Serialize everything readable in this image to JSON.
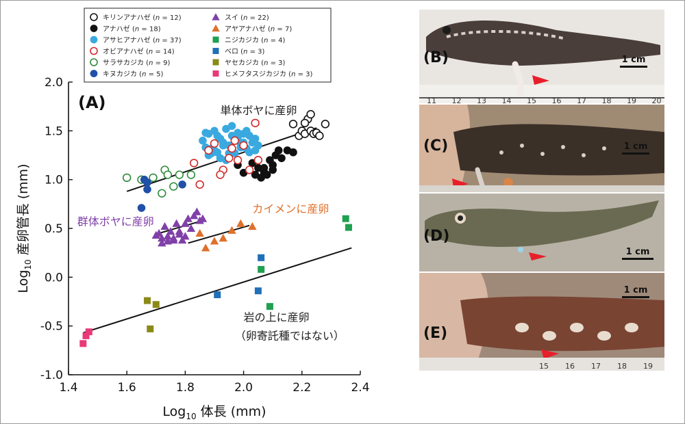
{
  "chart_data": {
    "type": "scatter",
    "panel_label": "(A)",
    "xlabel_main": "Log",
    "xlabel_sub": "10",
    "xlabel_rest": " 体長 (mm)",
    "ylabel_main": "Log",
    "ylabel_sub": "10",
    "ylabel_rest": " 産卵管長 (mm)",
    "xlim": [
      1.4,
      2.4
    ],
    "ylim": [
      -1.0,
      2.0
    ],
    "xticks": [
      "1.4",
      "1.6",
      "1.8",
      "2.0",
      "2.2",
      "2.4"
    ],
    "yticks": [
      "2.0",
      "1.5",
      "1.0",
      "0.5",
      "0.0",
      "-0.5",
      "-1.0"
    ],
    "annotations": [
      {
        "text": "単体ボヤに産卵",
        "x": 1.92,
        "y": 1.67,
        "color": "#222222"
      },
      {
        "text": "カイメンに産卵",
        "x": 2.03,
        "y": 0.66,
        "color": "#e0702a"
      },
      {
        "text": "群体ボヤに産卵",
        "x": 1.43,
        "y": 0.53,
        "color": "#8040a8"
      },
      {
        "text": "岩の上に産卵",
        "x": 2.0,
        "y": -0.45,
        "color": "#222222"
      },
      {
        "text": "（卵寄託種ではない）",
        "x": 1.97,
        "y": -0.64,
        "color": "#222222"
      }
    ],
    "trendlines": [
      {
        "x": [
          1.6,
          2.25
        ],
        "y": [
          0.88,
          1.53
        ]
      },
      {
        "x": [
          1.71,
          1.86
        ],
        "y": [
          0.45,
          0.58
        ]
      },
      {
        "x": [
          1.81,
          2.02
        ],
        "y": [
          0.35,
          0.53
        ]
      },
      {
        "x": [
          1.45,
          2.37
        ],
        "y": [
          -0.57,
          0.3
        ]
      }
    ],
    "series": [
      {
        "name": "キリンアナハゼ",
        "n": "12",
        "marker": "circle-open",
        "color": "#111111",
        "x": [
          2.17,
          2.19,
          2.2,
          2.21,
          2.22,
          2.23,
          2.23,
          2.24,
          2.25,
          2.26,
          2.28,
          2.21
        ],
        "y": [
          1.57,
          1.45,
          1.5,
          1.47,
          1.62,
          1.67,
          1.5,
          1.47,
          1.48,
          1.45,
          1.57,
          1.58
        ]
      },
      {
        "name": "アナハゼ",
        "n": "18",
        "marker": "circle",
        "color": "#111111",
        "x": [
          1.98,
          2.0,
          2.02,
          2.04,
          2.05,
          2.06,
          2.07,
          2.08,
          2.09,
          2.1,
          2.11,
          2.12,
          2.13,
          2.03,
          2.07,
          2.1,
          2.15,
          2.17
        ],
        "y": [
          1.15,
          1.07,
          1.1,
          1.05,
          1.12,
          1.02,
          1.08,
          1.05,
          1.2,
          1.1,
          1.25,
          1.3,
          1.22,
          1.17,
          1.12,
          1.15,
          1.3,
          1.28
        ]
      },
      {
        "name": "アサヒアナハゼ",
        "n": "37",
        "marker": "circle",
        "color": "#3aa9df",
        "x": [
          1.86,
          1.87,
          1.88,
          1.89,
          1.9,
          1.91,
          1.92,
          1.93,
          1.94,
          1.95,
          1.96,
          1.97,
          1.98,
          1.99,
          2.0,
          2.01,
          2.02,
          2.03,
          2.04,
          2.05,
          1.88,
          1.9,
          1.92,
          1.94,
          1.96,
          1.98,
          2.0,
          2.02,
          2.04,
          1.87,
          1.89,
          1.91,
          1.93,
          1.95,
          1.97,
          1.99,
          2.01
        ],
        "y": [
          1.4,
          1.33,
          1.47,
          1.32,
          1.5,
          1.28,
          1.42,
          1.38,
          1.52,
          1.35,
          1.45,
          1.27,
          1.43,
          1.37,
          1.47,
          1.32,
          1.45,
          1.38,
          1.42,
          1.35,
          1.25,
          1.3,
          1.22,
          1.2,
          1.55,
          1.48,
          1.38,
          1.28,
          1.3,
          1.48,
          1.27,
          1.45,
          1.35,
          1.27,
          1.4,
          1.33,
          1.5
        ]
      },
      {
        "name": "オビアナハゼ",
        "n": "14",
        "marker": "circle-open",
        "color": "#d02a2a",
        "x": [
          1.83,
          1.85,
          1.9,
          1.93,
          1.95,
          1.97,
          1.98,
          2.0,
          2.02,
          2.04,
          1.88,
          1.96,
          2.05,
          1.92
        ],
        "y": [
          1.17,
          0.95,
          1.37,
          1.1,
          1.22,
          1.4,
          1.2,
          1.35,
          1.1,
          1.58,
          1.3,
          1.32,
          1.2,
          1.05
        ]
      },
      {
        "name": "サラサカジカ",
        "n": "9",
        "marker": "circle-open",
        "color": "#2d8a3a",
        "x": [
          1.6,
          1.65,
          1.69,
          1.72,
          1.73,
          1.74,
          1.76,
          1.78,
          1.82
        ],
        "y": [
          1.02,
          1.0,
          1.02,
          0.86,
          1.1,
          1.05,
          0.93,
          1.05,
          1.05
        ]
      },
      {
        "name": "キヌカジカ",
        "n": "5",
        "marker": "circle",
        "color": "#2150a8",
        "x": [
          1.65,
          1.66,
          1.67,
          1.67,
          1.79
        ],
        "y": [
          0.71,
          1.0,
          0.97,
          0.9,
          0.95
        ]
      },
      {
        "name": "スイ",
        "n": "22",
        "marker": "triangle",
        "color": "#8040a8",
        "x": [
          1.7,
          1.71,
          1.72,
          1.73,
          1.74,
          1.75,
          1.76,
          1.77,
          1.78,
          1.79,
          1.8,
          1.81,
          1.82,
          1.83,
          1.84,
          1.85,
          1.86,
          1.72,
          1.74,
          1.76,
          1.78,
          1.8
        ],
        "y": [
          0.43,
          0.45,
          0.4,
          0.52,
          0.37,
          0.47,
          0.4,
          0.55,
          0.44,
          0.38,
          0.55,
          0.6,
          0.5,
          0.63,
          0.67,
          0.58,
          0.6,
          0.35,
          0.42,
          0.38,
          0.47,
          0.42
        ]
      },
      {
        "name": "アヤアナハゼ",
        "n": "7",
        "marker": "triangle",
        "color": "#e0702a",
        "x": [
          1.87,
          1.9,
          1.93,
          1.96,
          1.99,
          2.03,
          1.85
        ],
        "y": [
          0.3,
          0.37,
          0.4,
          0.48,
          0.55,
          0.52,
          0.45
        ]
      },
      {
        "name": "ニジカジカ",
        "n": "4",
        "marker": "square",
        "color": "#20a050",
        "x": [
          2.06,
          2.09,
          2.35,
          2.36
        ],
        "y": [
          0.08,
          -0.3,
          0.6,
          0.51
        ]
      },
      {
        "name": "ベロ",
        "n": "3",
        "marker": "square",
        "color": "#2070b8",
        "x": [
          1.91,
          2.05,
          2.06
        ],
        "y": [
          -0.18,
          -0.14,
          0.2
        ]
      },
      {
        "name": "ヤセカジカ",
        "n": "3",
        "marker": "square",
        "color": "#8a8a18",
        "x": [
          1.67,
          1.68,
          1.7
        ],
        "y": [
          -0.24,
          -0.53,
          -0.28
        ]
      },
      {
        "name": "ヒメフタスジカジカ",
        "n": "3",
        "marker": "square",
        "color": "#e83a78",
        "x": [
          1.45,
          1.46,
          1.47
        ],
        "y": [
          -0.68,
          -0.6,
          -0.56
        ]
      }
    ]
  },
  "photos": [
    {
      "label": "(B)",
      "scale": "1 cm"
    },
    {
      "label": "(C)",
      "scale": "1 cm"
    },
    {
      "label": "(D)",
      "scale": "1 cm"
    },
    {
      "label": "(E)",
      "scale": "1 cm"
    }
  ],
  "ruler_numbers_b": [
    "11",
    "12",
    "13",
    "14",
    "15",
    "16",
    "17",
    "18",
    "19",
    "20"
  ],
  "ruler_numbers_e": [
    "15",
    "16",
    "17",
    "18",
    "19"
  ]
}
